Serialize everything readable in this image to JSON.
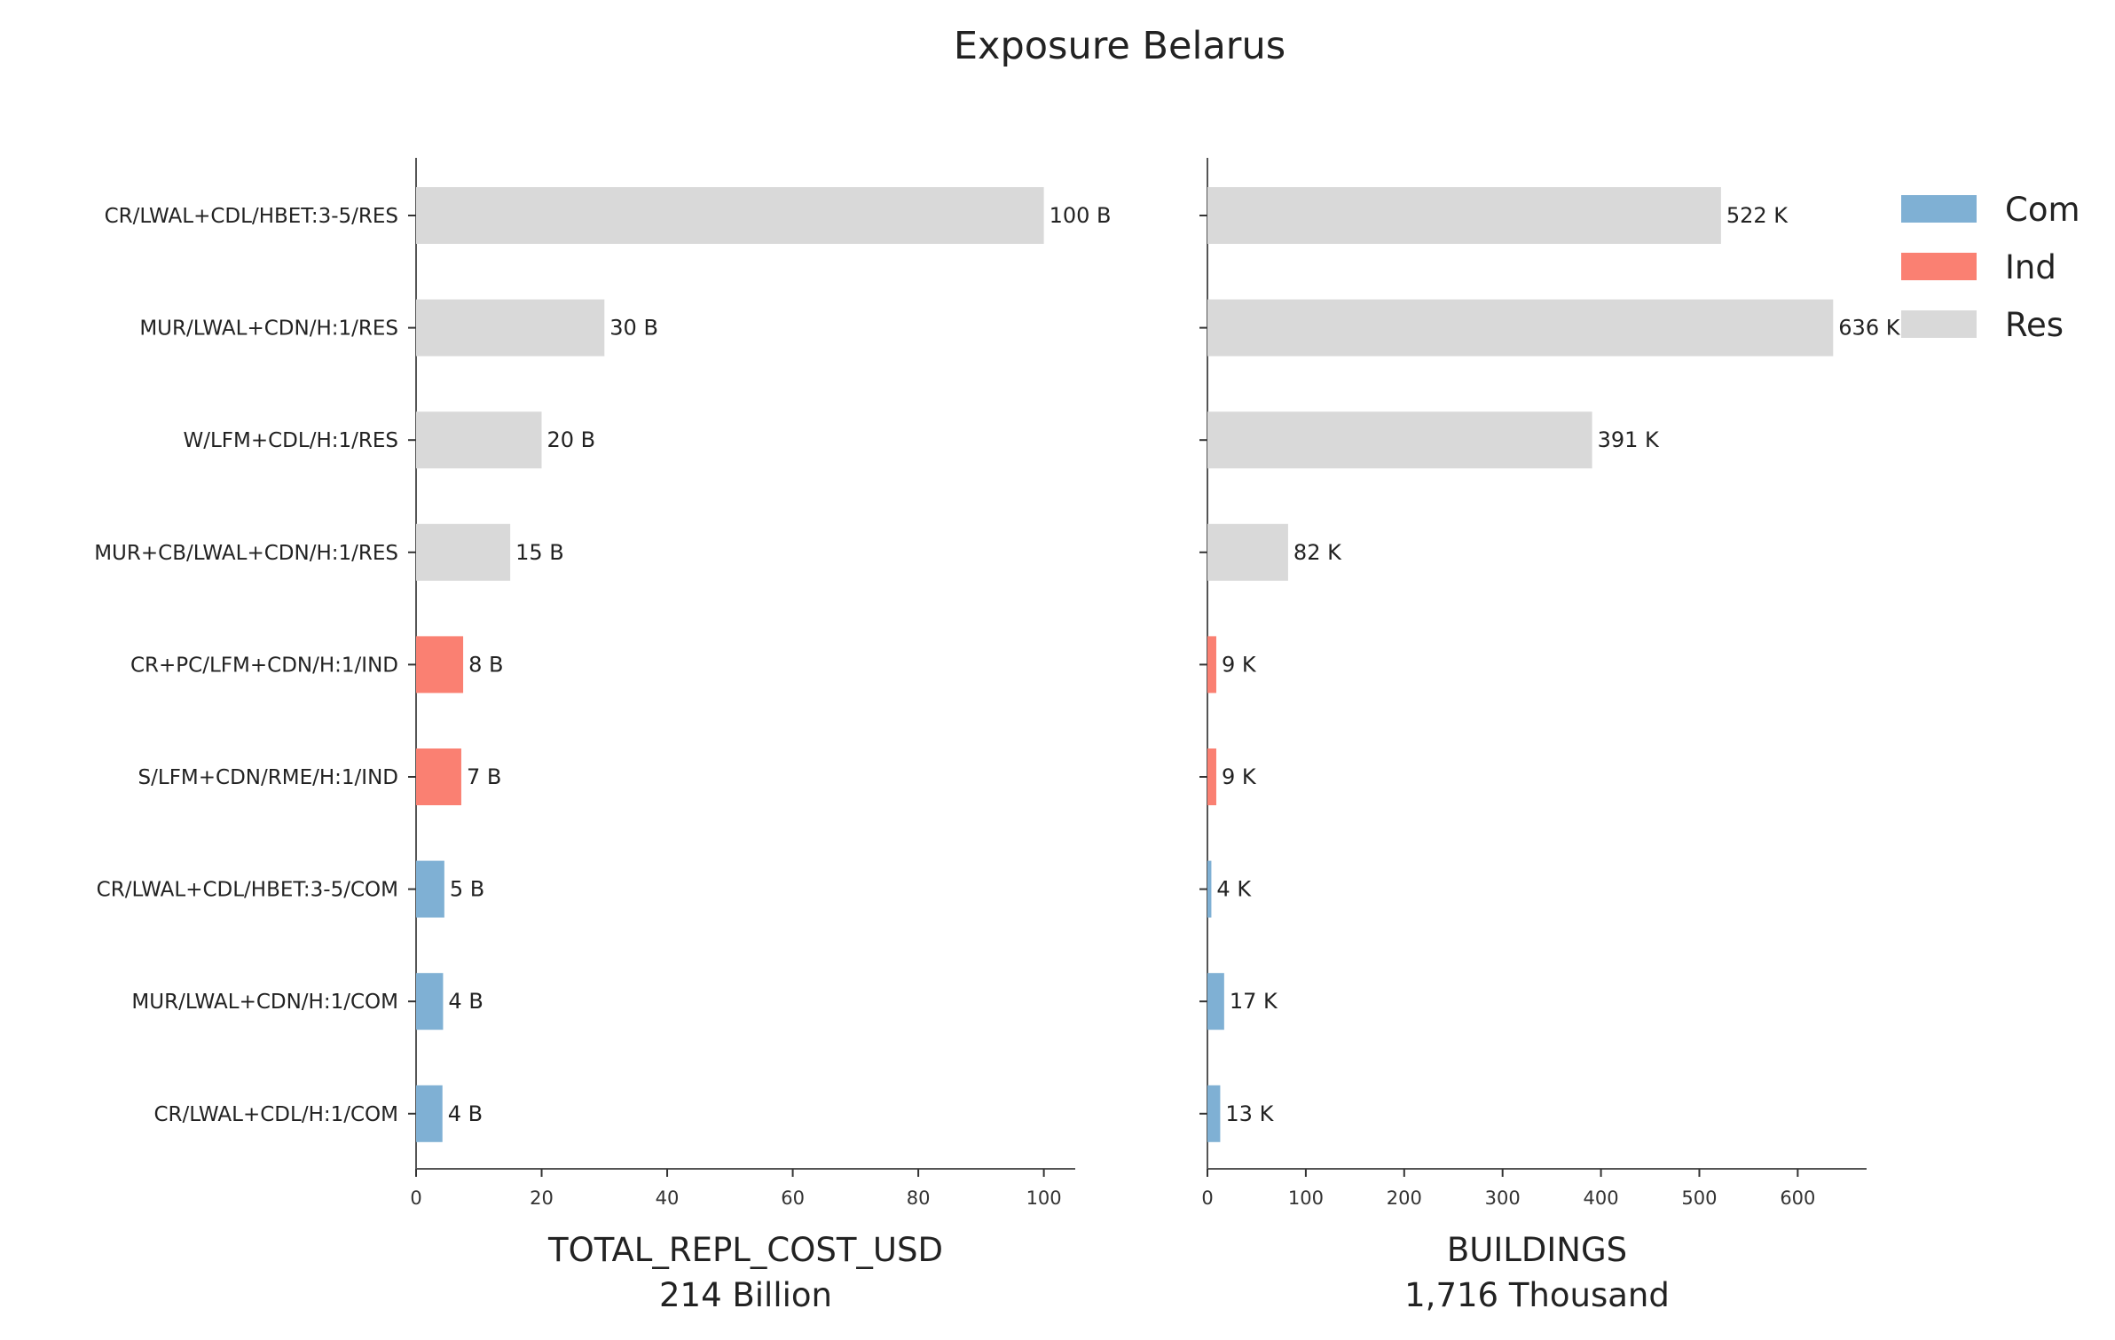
{
  "chart_data": {
    "type": "bar",
    "title": "Exposure Belarus",
    "categories": [
      "CR/LWAL+CDL/HBET:3-5/RES",
      "MUR/LWAL+CDN/H:1/RES",
      "W/LFM+CDL/H:1/RES",
      "MUR+CB/LWAL+CDN/H:1/RES",
      "CR+PC/LFM+CDN/H:1/IND",
      "S/LFM+CDN/RME/H:1/IND",
      "CR/LWAL+CDL/HBET:3-5/COM",
      "MUR/LWAL+CDN/H:1/COM",
      "CR/LWAL+CDL/H:1/COM"
    ],
    "occupancy": [
      "Res",
      "Res",
      "Res",
      "Res",
      "Ind",
      "Ind",
      "Com",
      "Com",
      "Com"
    ],
    "legend": {
      "placement": "top-right",
      "entries": [
        {
          "name": "Com",
          "color": "#7fb0d4"
        },
        {
          "name": "Ind",
          "color": "#fa8072"
        },
        {
          "name": "Res",
          "color": "#d9d9d9"
        }
      ]
    },
    "panels": [
      {
        "xlabel": "TOTAL_REPL_COST_USD",
        "subtitle": "214 Billion",
        "values": [
          100,
          30,
          20,
          15,
          7.5,
          7.2,
          4.5,
          4.3,
          4.2
        ],
        "data_labels": [
          "100 B",
          "30 B",
          "20 B",
          "15 B",
          "8 B",
          "7 B",
          "5 B",
          "4 B",
          "4 B"
        ],
        "xlim": [
          0,
          105
        ],
        "xticks": [
          "0",
          "20",
          "40",
          "60",
          "80",
          "100"
        ],
        "xtick_values": [
          0,
          20,
          40,
          60,
          80,
          100
        ]
      },
      {
        "xlabel": "BUILDINGS",
        "subtitle": "1,716 Thousand",
        "values": [
          522,
          636,
          391,
          82,
          9,
          9,
          4,
          17,
          13
        ],
        "data_labels": [
          "522 K",
          "636 K",
          "391 K",
          "82 K",
          "9 K",
          "9 K",
          "4 K",
          "17 K",
          "13 K"
        ],
        "xlim": [
          0,
          670
        ],
        "xticks": [
          "0",
          "100",
          "200",
          "300",
          "400",
          "500",
          "600"
        ],
        "xtick_values": [
          0,
          100,
          200,
          300,
          400,
          500,
          600
        ]
      }
    ]
  }
}
